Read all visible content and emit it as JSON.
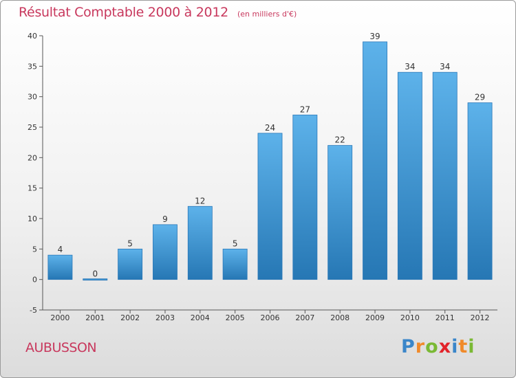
{
  "chart_data": {
    "type": "bar",
    "title": "Résultat Comptable 2000 à 2012",
    "subtitle": "(en milliers d'€)",
    "categories": [
      "2000",
      "2001",
      "2002",
      "2003",
      "2004",
      "2005",
      "2006",
      "2007",
      "2008",
      "2009",
      "2010",
      "2011",
      "2012"
    ],
    "values": [
      4,
      0,
      5,
      9,
      12,
      5,
      24,
      27,
      22,
      39,
      34,
      34,
      29
    ],
    "data_labels": [
      "4",
      "0",
      "5",
      "9",
      "12",
      "5",
      "24",
      "27",
      "22",
      "39",
      "34",
      "34",
      "29"
    ],
    "ylim": [
      -5,
      40
    ],
    "yticks": [
      -5,
      0,
      5,
      10,
      15,
      20,
      25,
      30,
      35,
      40
    ],
    "ytick_labels": [
      "-5",
      "0",
      "5",
      "10",
      "15",
      "20",
      "25",
      "30",
      "35",
      "40"
    ],
    "xlabel": "",
    "ylabel": "",
    "grid": false,
    "legend": "none"
  },
  "footer": {
    "city": "AUBUSSON",
    "brand": [
      "P",
      "r",
      "o",
      "x",
      "i",
      "t",
      "i"
    ]
  },
  "colors": {
    "bar_top": "#5db2ea",
    "bar_bottom": "#2677b4",
    "title": "#c8385d",
    "brand": [
      "#3a86c9",
      "#f08a2a",
      "#7ab934",
      "#e2232a",
      "#3a86c9",
      "#f08a2a",
      "#7ab934"
    ]
  }
}
